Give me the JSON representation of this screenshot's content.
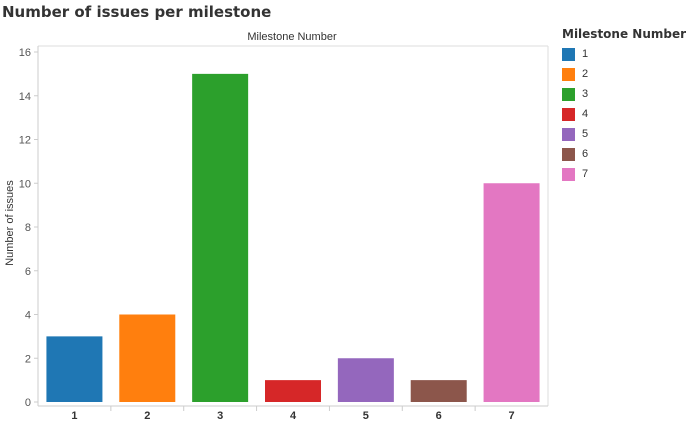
{
  "chart_data": {
    "type": "bar",
    "title": "Number of issues per milestone",
    "header_label": "Milestone Number",
    "xlabel": "",
    "ylabel": "Number of issues",
    "categories": [
      "1",
      "2",
      "3",
      "4",
      "5",
      "6",
      "7"
    ],
    "values": [
      3,
      4,
      15,
      1,
      2,
      1,
      10
    ],
    "colors": [
      "#1f77b4",
      "#ff7f0e",
      "#2ca02c",
      "#d62728",
      "#9467bd",
      "#8c564b",
      "#e377c2"
    ],
    "ylim": [
      0,
      16
    ],
    "yticks": [
      0,
      2,
      4,
      6,
      8,
      10,
      12,
      14,
      16
    ],
    "grid": false,
    "legend": {
      "title": "Milestone Number",
      "placement": "right",
      "entries": [
        "1",
        "2",
        "3",
        "4",
        "5",
        "6",
        "7"
      ]
    }
  }
}
